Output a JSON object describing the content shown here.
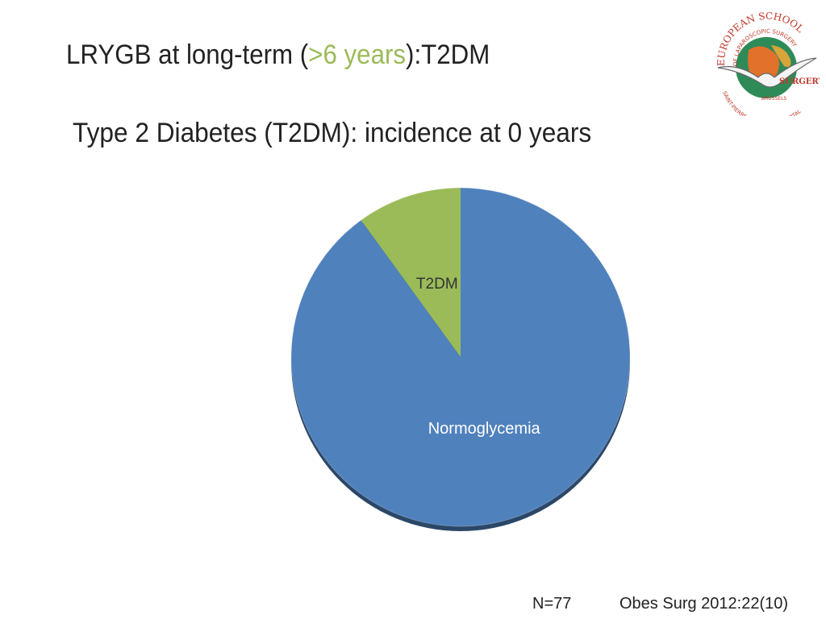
{
  "title": {
    "before": "LRYGB at long-term (",
    "highlight": ">6 years",
    "after": "):T2DM",
    "highlight_color": "#9bbb59"
  },
  "subtitle": "Type 2 Diabetes (T2DM): incidence at 0 years",
  "logo": {
    "arc_text_top": "EUROPEAN SCHOOL",
    "arc_text_inner": "OF LAPAROSCOPIC SURGERY",
    "arc_text_bottom": "SAINT-PIERRE UNIVERSITY HOSPITAL",
    "city": "BRUSSELS",
    "brand": "SURGERY",
    "icon": "seagull-globe-icon"
  },
  "chart_data": {
    "type": "pie",
    "title": "",
    "slices": [
      {
        "label": "Normoglycemia",
        "value": 90,
        "color": "#4f81bd"
      },
      {
        "label": "T2DM",
        "value": 10,
        "color": "#9bbb59"
      }
    ],
    "start": "12 o'clock",
    "direction": "clockwise",
    "legend": "none",
    "label_color": "#ffffff"
  },
  "footer": {
    "n_label": "N=77",
    "reference": "Obes Surg 2012:22(10)"
  }
}
